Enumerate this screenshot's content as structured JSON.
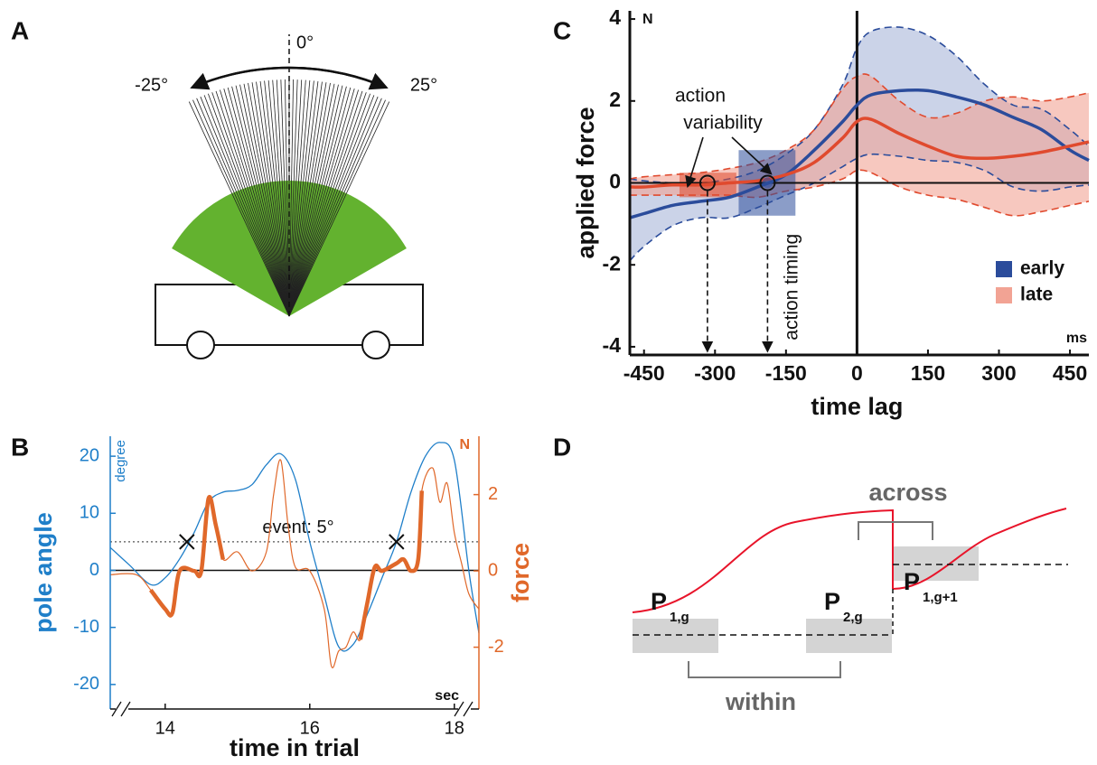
{
  "panel_a": {
    "label": "A",
    "angles": [
      {
        "value": -25,
        "label": "-25°"
      },
      {
        "value": 0,
        "label": "0°"
      },
      {
        "value": 25,
        "label": "25°"
      }
    ]
  },
  "panel_d": {
    "label": "D",
    "across": "across",
    "within": "within",
    "points": [
      {
        "main": "P",
        "sub": "1,g"
      },
      {
        "main": "P",
        "sub": "2,g"
      },
      {
        "main": "P",
        "sub": "1,g+1"
      }
    ]
  },
  "chart_data": [
    {
      "type": "line",
      "panel": "B",
      "x_label": "time in trial",
      "y_label": "pole angle",
      "y2_label": "force",
      "x_unit": "sec",
      "y_unit": "degree",
      "y2_unit": "N",
      "xlim": [
        13.24,
        18.34
      ],
      "ylim": [
        -24.3,
        23.5
      ],
      "y2lim": [
        -3.62,
        3.53
      ],
      "xticks": [
        14,
        16,
        18
      ],
      "yticks": [
        -20,
        -10,
        0,
        10,
        20
      ],
      "y2ticks": [
        -2,
        0,
        2
      ],
      "y_color": "#1f7fc9",
      "y2_color": "#e0682a",
      "series": [
        {
          "color": "#1f7fc9",
          "width": 1.3,
          "x": [
            13.24,
            13.5,
            13.8,
            14.0,
            14.2,
            14.4,
            14.6,
            14.8,
            15.0,
            15.2,
            15.4,
            15.6,
            15.8,
            16.0,
            16.2,
            16.4,
            16.6,
            16.8,
            17.0,
            17.2,
            17.4,
            17.6,
            17.8,
            18.0,
            18.2,
            18.34
          ],
          "values": [
            4,
            1,
            -2.5,
            -1.3,
            2,
            6.6,
            12,
            13.7,
            14,
            15,
            18.5,
            20.4,
            16,
            5,
            -4.4,
            -13.4,
            -13,
            -7.6,
            -1.3,
            5,
            13.7,
            20,
            22.4,
            19.3,
            0,
            -11
          ]
        },
        {
          "color": "#e0682a",
          "axis": "y2",
          "width": 1.2,
          "x": [
            13.24,
            13.6,
            13.8,
            14.0,
            14.1,
            14.2,
            14.4,
            14.5,
            14.6,
            14.7,
            14.8,
            15.0,
            15.2,
            15.4,
            15.5,
            15.6,
            15.7,
            15.8,
            16.0,
            16.2,
            16.3,
            16.4,
            16.5,
            16.6,
            16.7,
            16.8,
            16.9,
            17.0,
            17.2,
            17.3,
            17.4,
            17.5,
            17.55,
            17.7,
            17.8,
            17.9,
            18.0,
            18.1,
            18.2,
            18.34
          ],
          "values": [
            -0.1,
            -0.1,
            -0.5,
            -1.0,
            -1.1,
            0,
            0,
            0,
            1.9,
            1.2,
            0.3,
            0.5,
            0,
            0.5,
            2.0,
            2.9,
            1.2,
            0.1,
            0,
            -1.0,
            -2.5,
            -2.1,
            -2.0,
            -1.6,
            -1.8,
            -0.8,
            0.1,
            0,
            0.2,
            0.3,
            0,
            0.3,
            2.1,
            2.7,
            1.8,
            2.3,
            1.0,
            0.2,
            -0.6,
            -1.0
          ]
        },
        {
          "color": "#e0682a",
          "axis": "y2",
          "width": 4.5,
          "x": [
            13.24,
            13.6,
            13.8,
            14.0,
            14.1,
            14.2,
            14.4,
            14.5,
            14.6,
            14.7,
            14.8,
            15.0,
            15.2,
            15.4,
            15.5,
            15.6,
            15.7,
            15.8,
            16.0,
            16.2,
            16.3,
            16.4,
            16.5,
            16.6,
            16.7,
            16.8,
            16.9,
            17.0,
            17.2,
            17.3,
            17.4,
            17.5,
            17.55,
            17.7,
            17.8,
            17.9,
            18.0,
            18.1,
            18.2,
            18.34
          ],
          "values": [
            null,
            null,
            -0.5,
            -1.0,
            -1.1,
            0,
            0,
            0,
            1.9,
            1.2,
            0.3,
            null,
            null,
            null,
            null,
            null,
            null,
            null,
            null,
            null,
            null,
            null,
            null,
            null,
            -1.8,
            -0.8,
            0.1,
            0,
            0.2,
            0.3,
            0,
            0.3,
            2.1,
            null,
            null,
            null,
            null,
            null,
            null,
            null
          ]
        }
      ],
      "threshold": {
        "value": 5,
        "label": "event: 5°"
      },
      "events": [
        {
          "x": 14.3,
          "y": 5
        },
        {
          "x": 17.2,
          "y": 5
        }
      ]
    },
    {
      "type": "line",
      "panel": "C",
      "x_label": "time lag",
      "y_label": "applied force",
      "x_unit": "ms",
      "y_unit": "N",
      "xlim": [
        -480,
        490
      ],
      "ylim": [
        -4.2,
        4.2
      ],
      "xticks": [
        -450,
        -300,
        -150,
        0,
        150,
        300,
        450
      ],
      "yticks": [
        -4,
        -2,
        0,
        2,
        4
      ],
      "legend": "lower right",
      "x": [
        -480,
        -450,
        -390,
        -330,
        -270,
        -210,
        -150,
        -90,
        -30,
        0,
        30,
        90,
        150,
        210,
        270,
        330,
        390,
        450,
        490
      ],
      "series": [
        {
          "name": "early",
          "color": "#2b4c9b",
          "band_color": "#a9b6d8",
          "values": [
            -0.85,
            -0.75,
            -0.55,
            -0.45,
            -0.35,
            -0.1,
            0.2,
            0.8,
            1.5,
            1.9,
            2.15,
            2.25,
            2.25,
            2.1,
            1.9,
            1.6,
            1.3,
            0.8,
            0.55
          ],
          "upper": [
            0.1,
            0.05,
            0,
            0,
            0.1,
            0.3,
            0.7,
            1.3,
            2.4,
            3.3,
            3.7,
            3.8,
            3.6,
            3.1,
            2.4,
            1.9,
            1.8,
            1.3,
            0.9
          ],
          "lower": [
            -1.9,
            -1.55,
            -1.05,
            -0.85,
            -0.85,
            -0.6,
            -0.3,
            0,
            0.4,
            0.6,
            0.7,
            0.65,
            0.55,
            0.5,
            0.3,
            -0.1,
            -0.2,
            -0.1,
            -0.05
          ]
        },
        {
          "name": "late",
          "color": "#e04a2e",
          "band_color": "#f2a394",
          "values": [
            -0.1,
            -0.1,
            -0.05,
            -0.05,
            0,
            0.05,
            0.2,
            0.5,
            1.1,
            1.5,
            1.55,
            1.2,
            0.9,
            0.65,
            0.6,
            0.65,
            0.75,
            0.9,
            1.0
          ],
          "upper": [
            0.1,
            0.15,
            0.2,
            0.25,
            0.35,
            0.5,
            0.8,
            1.3,
            2.3,
            2.6,
            2.6,
            2.0,
            1.6,
            1.7,
            2.0,
            2.1,
            2.0,
            2.1,
            2.2
          ],
          "lower": [
            -0.3,
            -0.3,
            -0.3,
            -0.3,
            -0.3,
            -0.35,
            -0.2,
            -0.1,
            0.1,
            0.3,
            0.25,
            -0.1,
            -0.3,
            -0.4,
            -0.6,
            -0.8,
            -0.7,
            -0.55,
            -0.45
          ]
        }
      ],
      "windows": [
        {
          "x": [
            -375,
            -255
          ],
          "y": [
            -0.35,
            0.25
          ],
          "color": "#e04a2e"
        },
        {
          "x": [
            -250,
            -130
          ],
          "y": [
            -0.8,
            0.8
          ],
          "color": "#2b4c9b"
        }
      ],
      "markers": [
        {
          "x": -316,
          "y": 0,
          "color": "#e04a2e"
        },
        {
          "x": -189,
          "y": 0,
          "color": "#2b4c9b"
        }
      ],
      "annotations": [
        "action",
        "variability",
        "action timing"
      ]
    }
  ]
}
